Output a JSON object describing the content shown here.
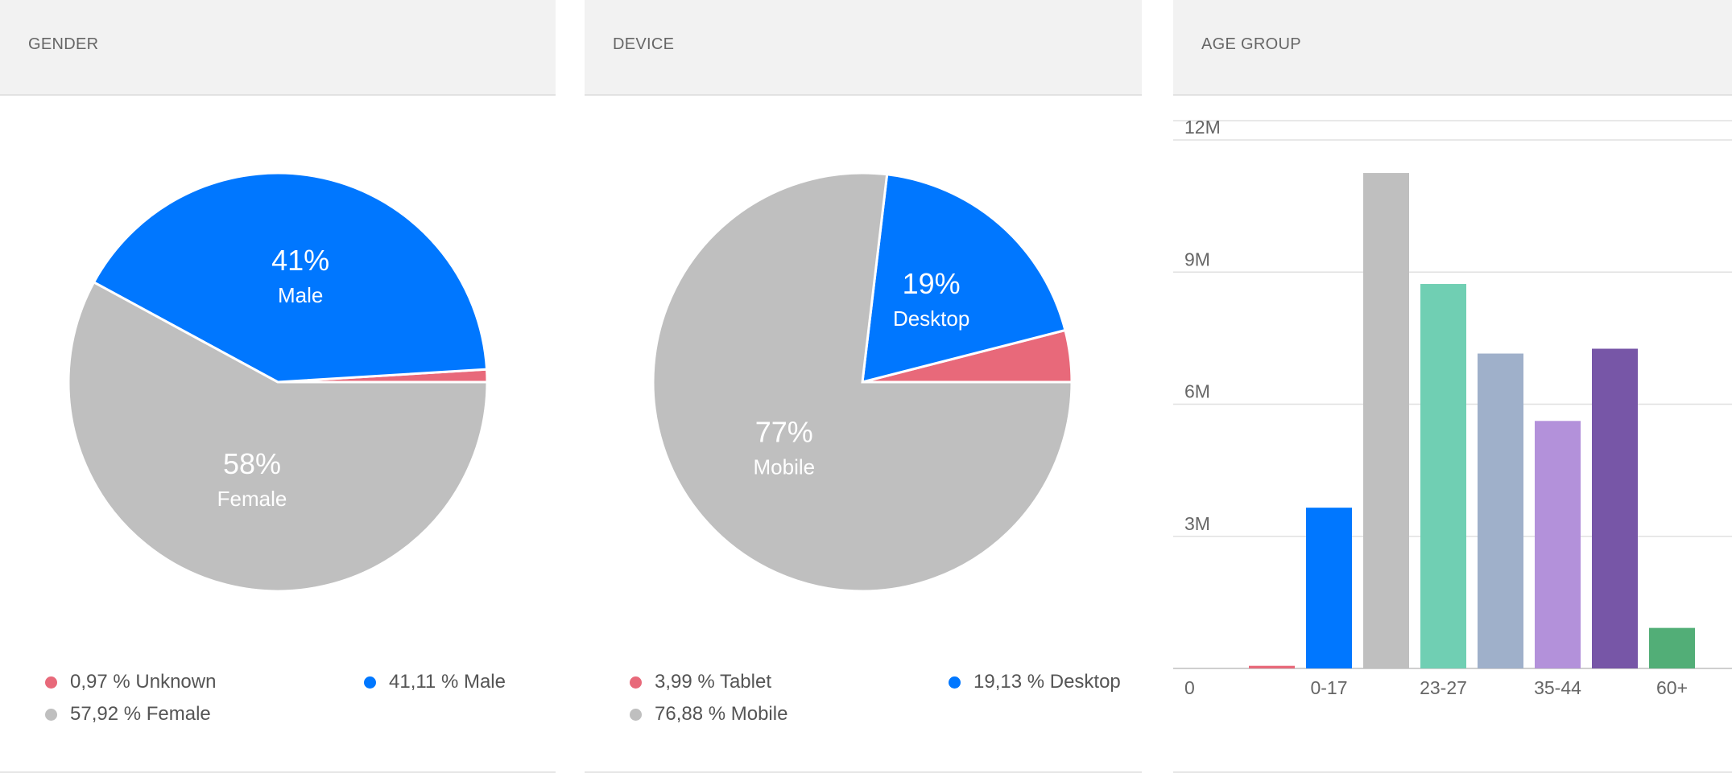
{
  "panels": {
    "gender": {
      "title": "GENDER"
    },
    "device": {
      "title": "DEVICE"
    },
    "age": {
      "title": "AGE GROUP"
    }
  },
  "colors": {
    "red": "#e8697a",
    "blue": "#0077ff",
    "gray": "#bfbfbf",
    "teal": "#70cfb3",
    "slate": "#9fb0ca",
    "lavender": "#b391da",
    "purple": "#7756a7",
    "green": "#52ae77",
    "grid": "#e0e0e0",
    "axis": "#cfcfcf"
  },
  "chart_data": [
    {
      "id": "gender",
      "type": "pie",
      "title": "GENDER",
      "slices": [
        {
          "key": "unknown",
          "value": 0.97,
          "color": "#e8697a",
          "legend": "0,97 % Unknown",
          "pct_label": "",
          "name_label": ""
        },
        {
          "key": "male",
          "value": 41.11,
          "color": "#0077ff",
          "legend": "41,11 % Male",
          "pct_label": "41%",
          "name_label": "Male"
        },
        {
          "key": "female",
          "value": 57.92,
          "color": "#bfbfbf",
          "legend": "57,92 % Female",
          "pct_label": "58%",
          "name_label": "Female"
        }
      ]
    },
    {
      "id": "device",
      "type": "pie",
      "title": "DEVICE",
      "slices": [
        {
          "key": "tablet",
          "value": 3.99,
          "color": "#e8697a",
          "legend": "3,99 % Tablet",
          "pct_label": "",
          "name_label": ""
        },
        {
          "key": "desktop",
          "value": 19.13,
          "color": "#0077ff",
          "legend": "19,13 % Desktop",
          "pct_label": "19%",
          "name_label": "Desktop"
        },
        {
          "key": "mobile",
          "value": 76.88,
          "color": "#bfbfbf",
          "legend": "76,88 % Mobile",
          "pct_label": "77%",
          "name_label": "Mobile"
        }
      ]
    },
    {
      "id": "age",
      "type": "bar",
      "title": "AGE GROUP",
      "ylim": [
        0,
        12000000
      ],
      "yticks": [
        0,
        3000000,
        6000000,
        9000000,
        12000000
      ],
      "ytick_labels": [
        "0",
        "3M",
        "6M",
        "9M",
        "12M"
      ],
      "categories": [
        "",
        "0-17",
        "",
        "23-27",
        "",
        "35-44",
        "",
        "60+"
      ],
      "values": [
        60000,
        3650000,
        11250000,
        8730000,
        7150000,
        5620000,
        7260000,
        920000
      ],
      "colors": [
        "#e8697a",
        "#0077ff",
        "#bfbfbf",
        "#70cfb3",
        "#9fb0ca",
        "#b391da",
        "#7756a7",
        "#52ae77"
      ]
    }
  ]
}
